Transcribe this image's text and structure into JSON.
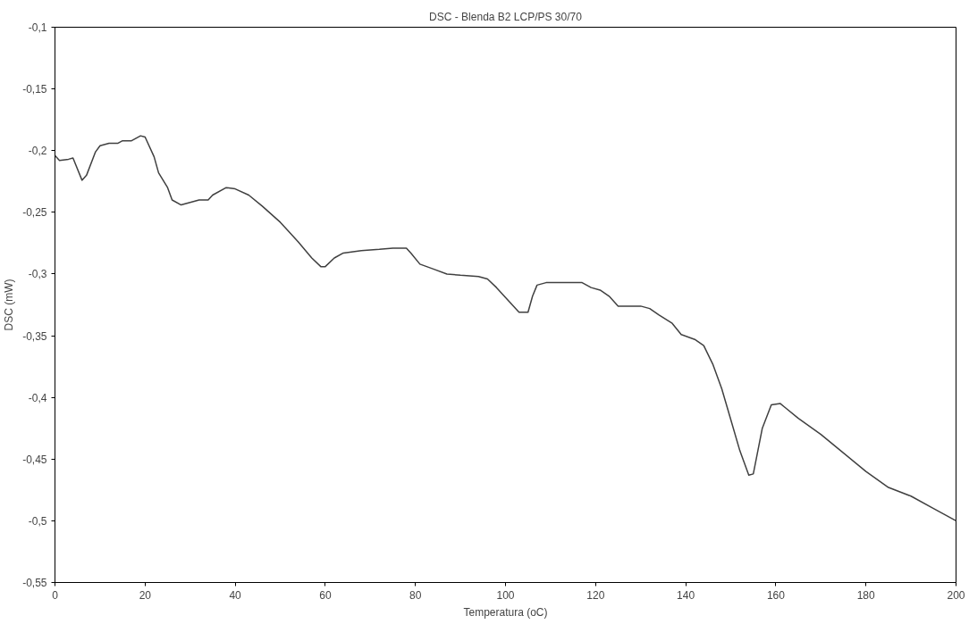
{
  "chart_data": {
    "type": "line",
    "title": "DSC - Blenda B2 LCP/PS 30/70",
    "xlabel": "Temperatura (oC)",
    "ylabel": "DSC (mW)",
    "xlim": [
      0,
      200
    ],
    "xticks": [
      0,
      20,
      40,
      60,
      80,
      100,
      120,
      140,
      160,
      180,
      200
    ],
    "ylim": [
      -0.55,
      -0.1
    ],
    "yticks": [
      {
        "value": -0.55,
        "label": "-0,55"
      },
      {
        "value": -0.5,
        "label": "-0,5"
      },
      {
        "value": -0.45,
        "label": "-0,45"
      },
      {
        "value": -0.4,
        "label": "-0,4"
      },
      {
        "value": -0.35,
        "label": "-0,35"
      },
      {
        "value": -0.3,
        "label": "-0,3"
      },
      {
        "value": -0.25,
        "label": "-0,25"
      },
      {
        "value": -0.2,
        "label": "-0,2"
      },
      {
        "value": -0.15,
        "label": "-0,15"
      },
      {
        "value": -0.1,
        "label": "-0,1"
      }
    ],
    "grid": false,
    "marker": "none",
    "line_style": "solid",
    "x": [
      0,
      1,
      3,
      4,
      6,
      7,
      9,
      10,
      12,
      14,
      15,
      17,
      19,
      20,
      22,
      23,
      25,
      26,
      28,
      30,
      32,
      34,
      35,
      38,
      40,
      43,
      46,
      50,
      54,
      57,
      59,
      60,
      62,
      64,
      68,
      72,
      75,
      78,
      79,
      81,
      84,
      87,
      90,
      94,
      96,
      98,
      101,
      103,
      105,
      106,
      107,
      109,
      114,
      117,
      119,
      121,
      123,
      125,
      130,
      132,
      134,
      137,
      139,
      142,
      144,
      146,
      148,
      150,
      152,
      154,
      155,
      157,
      159,
      161,
      162,
      165,
      170,
      175,
      180,
      185,
      190,
      195,
      200
    ],
    "series": [
      {
        "color": "#404040",
        "values": [
          -0.204,
          -0.208,
          -0.207,
          -0.206,
          -0.224,
          -0.22,
          -0.201,
          -0.196,
          -0.194,
          -0.194,
          -0.192,
          -0.192,
          -0.188,
          -0.189,
          -0.205,
          -0.218,
          -0.23,
          -0.24,
          -0.244,
          -0.242,
          -0.24,
          -0.24,
          -0.236,
          -0.23,
          -0.231,
          -0.236,
          -0.245,
          -0.258,
          -0.274,
          -0.287,
          -0.294,
          -0.294,
          -0.287,
          -0.283,
          -0.281,
          -0.28,
          -0.279,
          -0.279,
          -0.283,
          -0.292,
          -0.296,
          -0.3,
          -0.301,
          -0.302,
          -0.304,
          -0.311,
          -0.323,
          -0.331,
          -0.331,
          -0.318,
          -0.309,
          -0.307,
          -0.307,
          -0.307,
          -0.311,
          -0.313,
          -0.318,
          -0.326,
          -0.326,
          -0.328,
          -0.333,
          -0.34,
          -0.349,
          -0.353,
          -0.358,
          -0.373,
          -0.393,
          -0.418,
          -0.443,
          -0.463,
          -0.462,
          -0.425,
          -0.406,
          -0.405,
          -0.408,
          -0.417,
          -0.43,
          -0.445,
          -0.46,
          -0.473,
          -0.48,
          -0.49,
          -0.5
        ]
      }
    ]
  }
}
